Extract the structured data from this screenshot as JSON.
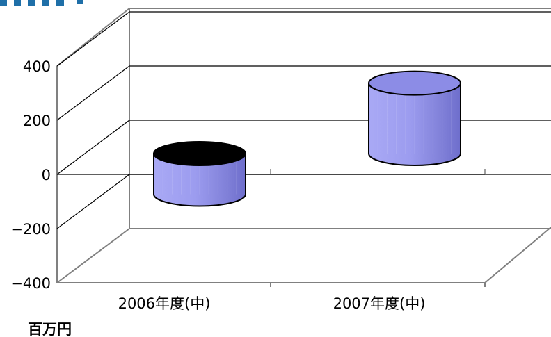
{
  "chart_data": {
    "type": "bar",
    "style": "3d-cylinder",
    "categories": [
      "2006年度(中)",
      "2007年度(中)"
    ],
    "series": [
      {
        "values": [
          -150,
          260
        ]
      }
    ],
    "ylim": [
      -400,
      400
    ],
    "yticks": [
      -400,
      -200,
      0,
      200,
      400
    ],
    "ytick_labels": [
      "−400",
      "−200",
      "0",
      "200",
      "400"
    ],
    "unit_label": "百万円",
    "grid": true,
    "colors": {
      "bar_face": "#9A9AEE",
      "bar_top": "#8C8CE6",
      "bar_top_negative": "#000000",
      "bar_edge": "#000000",
      "accent_top_left": "#1F6FA8",
      "axis": "#808080",
      "grid": "#000000"
    }
  }
}
